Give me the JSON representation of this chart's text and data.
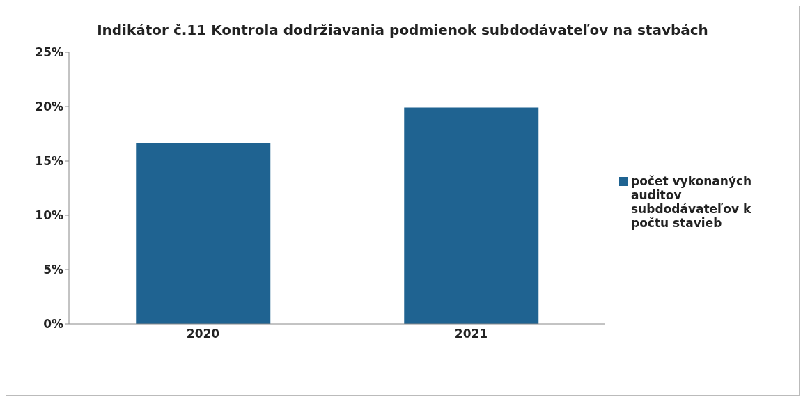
{
  "chart_data": {
    "type": "bar",
    "title": "Indikátor č.11 Kontrola dodržiavania podmienok subdodávateľov na stavbách",
    "categories": [
      "2020",
      "2021"
    ],
    "series": [
      {
        "name": "počet vykonaných auditov subdodávateľov k počtu stavieb",
        "color": "#1f6391",
        "values": [
          16.6,
          19.9
        ]
      }
    ],
    "ylim": [
      0,
      25
    ],
    "yticks": [
      {
        "value": 0,
        "label": "0%"
      },
      {
        "value": 5,
        "label": "5%"
      },
      {
        "value": 10,
        "label": "10%"
      },
      {
        "value": 15,
        "label": "15%"
      },
      {
        "value": 20,
        "label": "20%"
      },
      {
        "value": 25,
        "label": "25%"
      }
    ],
    "legend": "right"
  }
}
